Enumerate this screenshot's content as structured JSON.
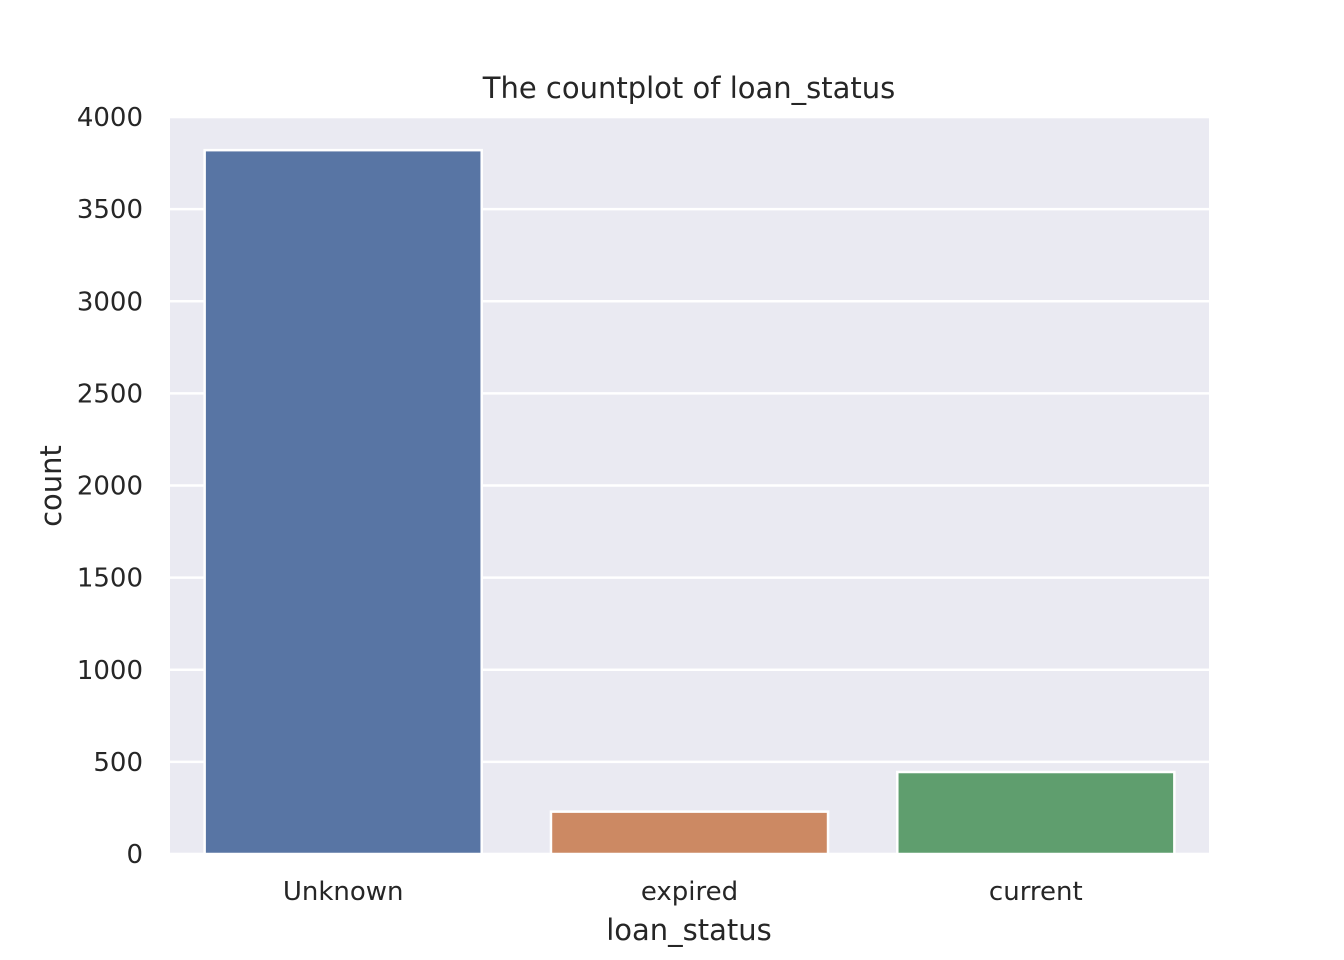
{
  "chart_data": {
    "type": "bar",
    "title": "The countplot of loan_status",
    "xlabel": "loan_status",
    "ylabel": "count",
    "categories": [
      "Unknown",
      "expired",
      "current"
    ],
    "values": [
      3820,
      230,
      445
    ],
    "ylim": [
      0,
      4000
    ],
    "yticks": [
      "0",
      "500",
      "1000",
      "1500",
      "2000",
      "2500",
      "3000",
      "3500",
      "4000"
    ],
    "colors": [
      "#5875a4",
      "#cc8963",
      "#5f9e6e"
    ],
    "background": "#eaeaf2",
    "grid": true
  }
}
